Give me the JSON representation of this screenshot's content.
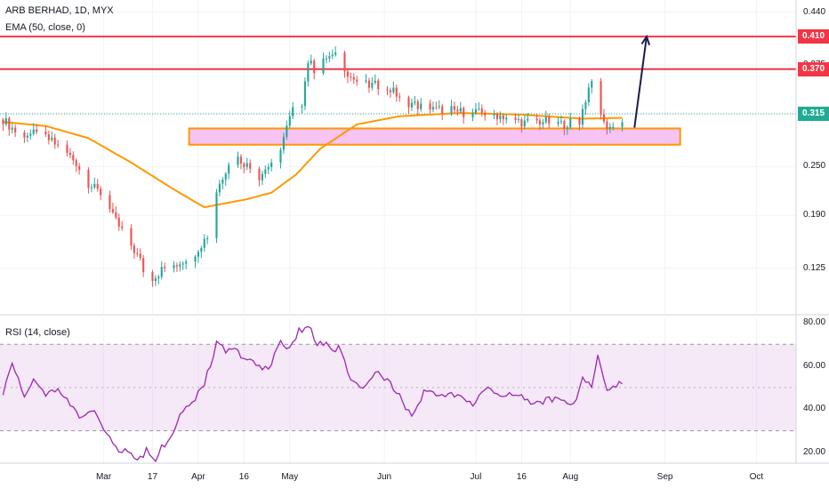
{
  "header": {
    "symbol_line": "ARB BERHAD, 1D, MYX",
    "ema_label": "EMA (50, close, 0)",
    "rsi_label": "RSI (14, close)"
  },
  "chart_data": [
    {
      "type": "candlestick",
      "title": "ARB BERHAD, 1D, MYX",
      "ylim": [
        0.07,
        0.455
      ],
      "ytick_labels": [
        "0.440",
        "0.375",
        "0.315",
        "0.250",
        "0.190",
        "0.125"
      ],
      "ytick_values": [
        0.44,
        0.375,
        0.315,
        0.25,
        0.19,
        0.125
      ],
      "xtick_labels": [
        "Mar",
        "17",
        "Apr",
        "16",
        "May",
        "Jun",
        "Jul",
        "16",
        "Aug",
        "Sep",
        "Oct"
      ],
      "xtick_days": [
        33,
        49,
        64,
        79,
        94,
        125,
        155,
        170,
        186,
        217,
        247
      ],
      "day_range": [
        -1,
        260
      ],
      "price_anchor_days": [
        0,
        5,
        10,
        14,
        20,
        24,
        28,
        33,
        36,
        41,
        45,
        47,
        50,
        52,
        58,
        63,
        66,
        68,
        70,
        75,
        79,
        84,
        89,
        91,
        95,
        98,
        100,
        103,
        106,
        110,
        114,
        118,
        123,
        127,
        132,
        136,
        141,
        146,
        152,
        158,
        164,
        171,
        177,
        183,
        189,
        193,
        197,
        200,
        203
      ],
      "price_anchor_values": [
        0.308,
        0.29,
        0.29,
        0.286,
        0.27,
        0.255,
        0.228,
        0.215,
        0.188,
        0.16,
        0.134,
        0.112,
        0.115,
        0.123,
        0.132,
        0.145,
        0.16,
        0.17,
        0.22,
        0.265,
        0.255,
        0.238,
        0.26,
        0.275,
        0.32,
        0.33,
        0.38,
        0.365,
        0.385,
        0.385,
        0.36,
        0.35,
        0.35,
        0.345,
        0.33,
        0.325,
        0.32,
        0.32,
        0.316,
        0.316,
        0.312,
        0.304,
        0.306,
        0.302,
        0.306,
        0.36,
        0.302,
        0.298,
        0.306
      ],
      "ema": {
        "name": "EMA (50, close, 0)",
        "color": "#ff9800",
        "anchor_days": [
          0,
          14,
          28,
          42,
          56,
          66,
          80,
          88,
          96,
          104,
          116,
          130,
          150,
          170,
          190,
          203
        ],
        "anchor_values": [
          0.305,
          0.3,
          0.285,
          0.255,
          0.222,
          0.2,
          0.21,
          0.218,
          0.24,
          0.272,
          0.302,
          0.312,
          0.316,
          0.314,
          0.309,
          0.31
        ]
      },
      "horizontal_lines": [
        {
          "value": 0.41,
          "label": "0.410",
          "color": "#f23645"
        },
        {
          "value": 0.37,
          "label": "0.370",
          "color": "#f23645"
        }
      ],
      "last_price": {
        "value": 0.315,
        "label": "0.315",
        "color": "#22ab94"
      },
      "support_box": {
        "from_day": 61,
        "to_day": 222,
        "low": 0.277,
        "high": 0.297,
        "fill": "#f5b8f0",
        "border": "#ff9800"
      },
      "arrow": {
        "from_day": 207,
        "from_value": 0.298,
        "to_day": 211,
        "to_value": 0.41,
        "color": "#1c1b4b"
      },
      "colors": {
        "up": "#26a69a",
        "down": "#ef5350"
      }
    },
    {
      "type": "line",
      "title": "RSI (14, close)",
      "ylim": [
        15,
        82
      ],
      "ytick_labels": [
        "80.00",
        "60.00",
        "40.00",
        "20.00"
      ],
      "ytick_values": [
        80,
        60,
        40,
        20
      ],
      "band": [
        30,
        70
      ],
      "midline": 50,
      "color": "#9c27b0",
      "anchor_days": [
        0,
        3,
        7,
        10,
        14,
        18,
        22,
        26,
        30,
        33,
        37,
        41,
        45,
        47,
        50,
        52,
        55,
        58,
        63,
        66,
        70,
        73,
        76,
        79,
        82,
        85,
        88,
        91,
        94,
        97,
        100,
        103,
        106,
        108,
        110,
        114,
        118,
        122,
        126,
        130,
        134,
        138,
        142,
        146,
        150,
        154,
        158,
        162,
        166,
        170,
        174,
        178,
        182,
        186,
        188,
        190,
        193,
        195,
        198,
        203
      ],
      "anchor_values": [
        48,
        60,
        47,
        53,
        47,
        50,
        43,
        35,
        40,
        30,
        22,
        20,
        17,
        21,
        16,
        22,
        28,
        37,
        45,
        52,
        70,
        67,
        68,
        62,
        63,
        58,
        61,
        72,
        68,
        76,
        79,
        70,
        71,
        66,
        69,
        54,
        50,
        57,
        53,
        46,
        36,
        48,
        47,
        47,
        45,
        42,
        50,
        46,
        48,
        47,
        42,
        44,
        45,
        43,
        44,
        55,
        50,
        64,
        48,
        53
      ]
    }
  ]
}
